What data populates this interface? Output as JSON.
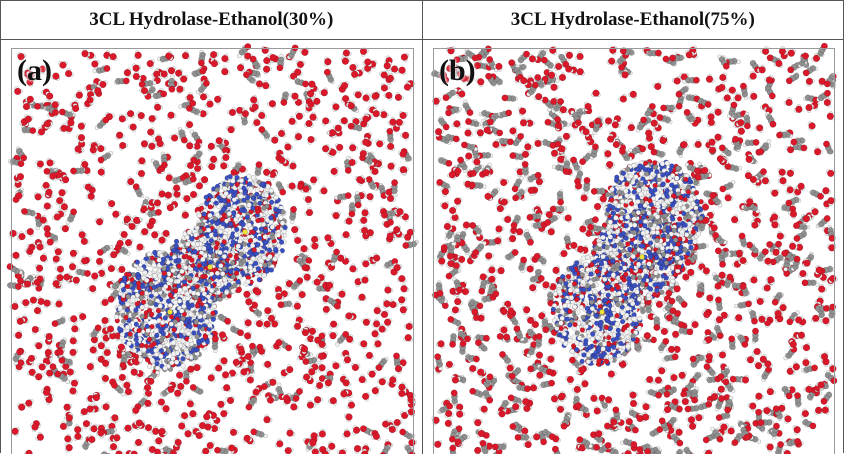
{
  "panels": [
    {
      "title": "3CL Hydrolase-Ethanol(30%)",
      "label": "(a)",
      "ethanol_fraction": 0.3
    },
    {
      "title": "3CL Hydrolase-Ethanol(75%)",
      "label": "(b)",
      "ethanol_fraction": 0.75
    }
  ],
  "colors": {
    "oxygen": "#d9182a",
    "hydrogen": "#f2f2f2",
    "carbon": "#8f8f8f",
    "nitrogen": "#3a4fc0",
    "sulfur": "#e8e23a"
  }
}
